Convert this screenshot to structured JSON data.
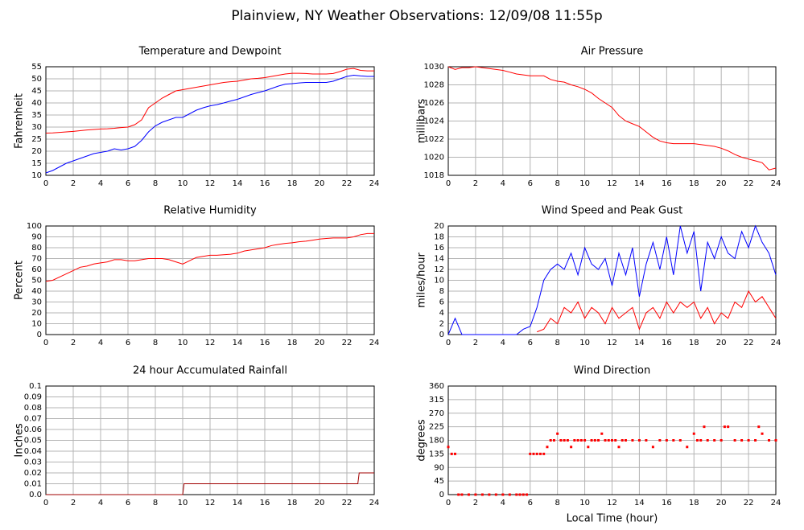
{
  "title": "Plainview, NY Weather Observations: 12/09/08 11:55p",
  "chart_data": [
    {
      "type": "line",
      "title": "Temperature and Dewpoint",
      "ylabel": "Fahrenheit",
      "x": [
        0,
        0.5,
        1,
        1.5,
        2,
        2.5,
        3,
        3.5,
        4,
        4.5,
        5,
        5.5,
        6,
        6.5,
        7,
        7.5,
        8,
        8.5,
        9,
        9.5,
        10,
        10.5,
        11,
        11.5,
        12,
        12.5,
        13,
        13.5,
        14,
        14.5,
        15,
        15.5,
        16,
        16.5,
        17,
        17.5,
        18,
        18.5,
        19,
        19.5,
        20,
        20.5,
        21,
        21.5,
        22,
        22.5,
        23,
        23.5,
        24
      ],
      "series": [
        {
          "color": "#ff0000",
          "values": [
            27.5,
            27.6,
            27.8,
            28,
            28.2,
            28.5,
            28.8,
            29,
            29.2,
            29.3,
            29.5,
            29.8,
            30,
            31,
            33,
            38,
            40,
            42,
            43.5,
            45,
            45.5,
            46,
            46.5,
            47,
            47.5,
            48,
            48.5,
            48.8,
            49,
            49.5,
            50,
            50.2,
            50.5,
            51,
            51.5,
            52,
            52.3,
            52.3,
            52.2,
            52,
            52,
            52,
            52.2,
            53,
            54,
            54.3,
            53.5,
            53.3,
            53.3
          ]
        },
        {
          "color": "#0000ff",
          "values": [
            11,
            12,
            13.5,
            15,
            16,
            17,
            18,
            19,
            19.5,
            20,
            21,
            20.5,
            21,
            22,
            24.5,
            28,
            30.5,
            32,
            33,
            34,
            34,
            35.5,
            37,
            38,
            38.8,
            39.3,
            40,
            40.8,
            41.5,
            42.5,
            43.5,
            44.3,
            45,
            46,
            47,
            47.8,
            48,
            48.3,
            48.5,
            48.5,
            48.5,
            48.5,
            49,
            50,
            51,
            51.5,
            51.2,
            51,
            51
          ]
        }
      ],
      "xlim": [
        0,
        24
      ],
      "xticks": [
        0,
        2,
        4,
        6,
        8,
        10,
        12,
        14,
        16,
        18,
        20,
        22,
        24
      ],
      "ylim": [
        10,
        55
      ],
      "yticks": [
        10,
        15,
        20,
        25,
        30,
        35,
        40,
        45,
        50,
        55
      ],
      "grid": true
    },
    {
      "type": "line",
      "title": "Air Pressure",
      "ylabel": "millibars",
      "x": [
        0,
        0.5,
        1,
        1.5,
        2,
        2.5,
        3,
        3.5,
        4,
        4.5,
        5,
        5.5,
        6,
        6.5,
        7,
        7.5,
        8,
        8.5,
        9,
        9.5,
        10,
        10.5,
        11,
        11.5,
        12,
        12.5,
        13,
        13.5,
        14,
        14.5,
        15,
        15.5,
        16,
        16.5,
        17,
        17.5,
        18,
        18.5,
        19,
        19.5,
        20,
        20.5,
        21,
        21.5,
        22,
        22.5,
        23,
        23.5,
        24
      ],
      "series": [
        {
          "color": "#ff0000",
          "values": [
            1030,
            1029.7,
            1029.9,
            1029.9,
            1030,
            1029.9,
            1029.8,
            1029.7,
            1029.6,
            1029.4,
            1029.2,
            1029.1,
            1029,
            1029,
            1029,
            1028.6,
            1028.4,
            1028.3,
            1028,
            1027.8,
            1027.5,
            1027.1,
            1026.5,
            1026,
            1025.5,
            1024.6,
            1024,
            1023.7,
            1023.4,
            1022.8,
            1022.2,
            1021.8,
            1021.6,
            1021.5,
            1021.5,
            1021.5,
            1021.5,
            1021.4,
            1021.3,
            1021.2,
            1021,
            1020.7,
            1020.3,
            1020,
            1019.8,
            1019.6,
            1019.4,
            1018.6,
            1018.8
          ]
        }
      ],
      "xlim": [
        0,
        24
      ],
      "xticks": [
        0,
        2,
        4,
        6,
        8,
        10,
        12,
        14,
        16,
        18,
        20,
        22,
        24
      ],
      "ylim": [
        1018,
        1030
      ],
      "yticks": [
        1018,
        1020,
        1022,
        1024,
        1026,
        1028,
        1030
      ],
      "grid": true
    },
    {
      "type": "line",
      "title": "Relative Humidity",
      "ylabel": "Percent",
      "x": [
        0,
        0.5,
        1,
        1.5,
        2,
        2.5,
        3,
        3.5,
        4,
        4.5,
        5,
        5.5,
        6,
        6.5,
        7,
        7.5,
        8,
        8.5,
        9,
        9.5,
        10,
        10.5,
        11,
        11.5,
        12,
        12.5,
        13,
        13.5,
        14,
        14.5,
        15,
        15.5,
        16,
        16.5,
        17,
        17.5,
        18,
        18.5,
        19,
        19.5,
        20,
        20.5,
        21,
        21.5,
        22,
        22.5,
        23,
        23.5,
        24
      ],
      "series": [
        {
          "color": "#ff0000",
          "values": [
            49,
            50,
            53,
            56,
            59,
            62,
            63,
            65,
            66,
            67,
            69,
            69,
            68,
            68,
            69,
            70,
            70,
            70,
            69,
            67,
            65,
            68,
            71,
            72,
            73,
            73,
            73.5,
            74,
            75,
            77,
            78,
            79,
            80,
            82,
            83,
            84,
            84.5,
            85.5,
            86,
            87,
            88,
            88.5,
            89,
            89,
            89,
            90,
            92,
            93,
            93
          ]
        }
      ],
      "xlim": [
        0,
        24
      ],
      "xticks": [
        0,
        2,
        4,
        6,
        8,
        10,
        12,
        14,
        16,
        18,
        20,
        22,
        24
      ],
      "ylim": [
        0,
        100
      ],
      "yticks": [
        0,
        10,
        20,
        30,
        40,
        50,
        60,
        70,
        80,
        90,
        100
      ],
      "grid": true
    },
    {
      "type": "line",
      "title": "Wind Speed and Peak Gust",
      "ylabel": "miles/hour",
      "x": [
        0,
        0.5,
        1,
        1.5,
        2,
        2.5,
        3,
        3.5,
        4,
        4.5,
        5,
        5.5,
        6,
        6.5,
        7,
        7.5,
        8,
        8.5,
        9,
        9.5,
        10,
        10.5,
        11,
        11.5,
        12,
        12.5,
        13,
        13.5,
        14,
        14.5,
        15,
        15.5,
        16,
        16.5,
        17,
        17.5,
        18,
        18.5,
        19,
        19.5,
        20,
        20.5,
        21,
        21.5,
        22,
        22.5,
        23,
        23.5,
        24
      ],
      "series": [
        {
          "color": "#0000ff",
          "values": [
            0,
            3,
            0,
            0,
            0,
            0,
            0,
            0,
            0,
            0,
            0,
            1,
            1.5,
            5,
            10,
            12,
            13,
            12,
            15,
            11,
            16,
            13,
            12,
            14,
            9,
            15,
            11,
            16,
            7,
            13,
            17,
            12,
            18,
            11,
            20,
            15,
            19,
            8,
            17,
            14,
            18,
            15,
            14,
            19,
            16,
            20,
            17,
            15,
            11
          ]
        },
        {
          "color": "#ff0000",
          "values": [
            null,
            null,
            null,
            null,
            null,
            null,
            null,
            null,
            null,
            null,
            null,
            null,
            null,
            0.5,
            1,
            3,
            2,
            5,
            4,
            6,
            3,
            5,
            4,
            2,
            5,
            3,
            4,
            5,
            1,
            4,
            5,
            3,
            6,
            4,
            6,
            5,
            6,
            3,
            5,
            2,
            4,
            3,
            6,
            5,
            8,
            6,
            7,
            5,
            3
          ]
        }
      ],
      "xlim": [
        0,
        24
      ],
      "xticks": [
        0,
        2,
        4,
        6,
        8,
        10,
        12,
        14,
        16,
        18,
        20,
        22,
        24
      ],
      "ylim": [
        0,
        20
      ],
      "yticks": [
        0,
        2,
        4,
        6,
        8,
        10,
        12,
        14,
        16,
        18,
        20
      ],
      "grid": true
    },
    {
      "type": "line",
      "title": "24 hour Accumulated Rainfall",
      "ylabel": "Inches",
      "x": [
        0,
        10,
        10.1,
        22.8,
        22.9,
        24
      ],
      "series": [
        {
          "color": "#a00000",
          "values": [
            0,
            0,
            0.01,
            0.01,
            0.02,
            0.02
          ]
        }
      ],
      "xlim": [
        0,
        24
      ],
      "xticks": [
        0,
        2,
        4,
        6,
        8,
        10,
        12,
        14,
        16,
        18,
        20,
        22,
        24
      ],
      "ylim": [
        0,
        0.1
      ],
      "yticks": [
        {
          "value": 0,
          "label": "0.0"
        },
        0.01,
        0.02,
        0.03,
        0.04,
        0.05,
        0.06,
        0.07,
        0.08,
        0.09,
        0.1
      ],
      "grid": true
    },
    {
      "type": "scatter",
      "title": "Wind Direction",
      "ylabel": "degrees",
      "xlabel": "Local Time (hour)",
      "x": [
        0,
        0.25,
        0.5,
        0.75,
        1,
        1.5,
        2,
        2.5,
        3,
        3.5,
        4,
        4.5,
        5,
        5.25,
        5.5,
        5.75,
        6,
        6.25,
        6.5,
        6.75,
        7,
        7.25,
        7.5,
        7.75,
        8,
        8.25,
        8.5,
        8.75,
        9,
        9.25,
        9.5,
        9.75,
        10,
        10.25,
        10.5,
        10.75,
        11,
        11.25,
        11.5,
        11.75,
        12,
        12.25,
        12.5,
        12.75,
        13,
        13.5,
        14,
        14.5,
        15,
        15.5,
        16,
        16.5,
        17,
        17.5,
        18,
        18.25,
        18.5,
        18.75,
        19,
        19.5,
        20,
        20.25,
        20.5,
        21,
        21.5,
        22,
        22.5,
        22.75,
        23,
        23.5,
        24
      ],
      "series": [
        {
          "color": "#ff0000",
          "values": [
            158,
            135,
            135,
            0,
            0,
            0,
            0,
            0,
            0,
            0,
            0,
            0,
            0,
            0,
            0,
            0,
            135,
            135,
            135,
            135,
            135,
            158,
            180,
            180,
            202,
            180,
            180,
            180,
            158,
            180,
            180,
            180,
            180,
            158,
            180,
            180,
            180,
            202,
            180,
            180,
            180,
            180,
            158,
            180,
            180,
            180,
            180,
            180,
            158,
            180,
            180,
            180,
            180,
            158,
            202,
            180,
            180,
            225,
            180,
            180,
            180,
            225,
            225,
            180,
            180,
            180,
            180,
            225,
            202,
            180,
            180
          ]
        }
      ],
      "xlim": [
        0,
        24
      ],
      "xticks": [
        0,
        2,
        4,
        6,
        8,
        10,
        12,
        14,
        16,
        18,
        20,
        22,
        24
      ],
      "ylim": [
        0,
        360
      ],
      "yticks": [
        0,
        45,
        90,
        135,
        180,
        225,
        270,
        315,
        360
      ],
      "grid": true
    }
  ]
}
